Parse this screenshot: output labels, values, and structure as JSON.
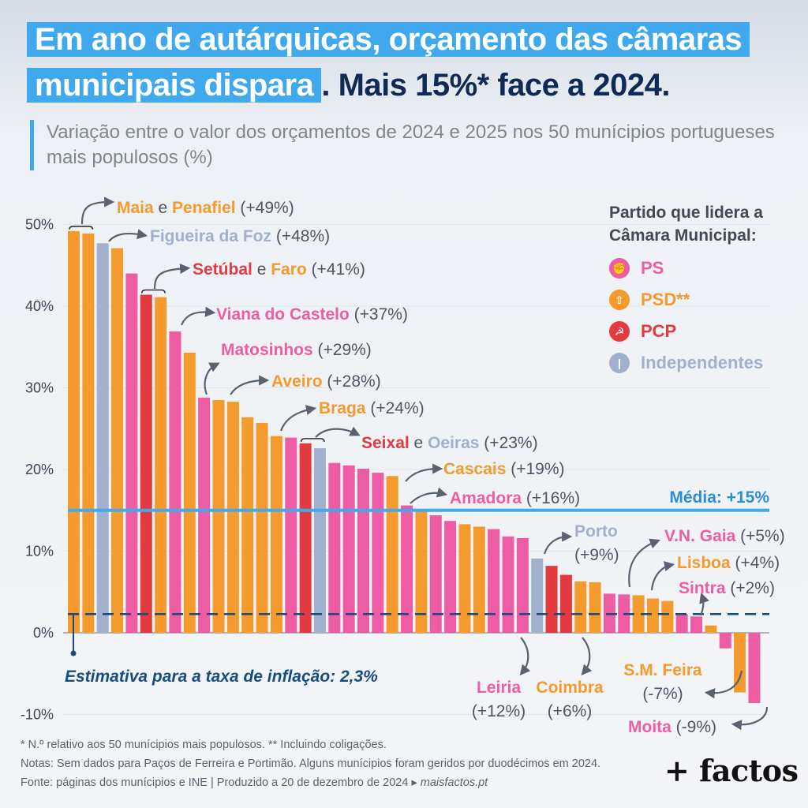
{
  "title": {
    "line1": "Em ano de autárquicas, orçamento das câmaras",
    "line2_highlight": "municipais dispara",
    "line2_rest": ". Mais 15%* face a 2024."
  },
  "subtitle": "Variação entre o valor dos orçamentos de 2024 e 2025 nos 50 munícipios portugueses mais populosos (%)",
  "legend": {
    "title_line1": "Partido que lidera a",
    "title_line2": "Câmara Municipal:",
    "items": [
      {
        "key": "PS",
        "label": "PS",
        "color": "#ee5da4",
        "icon": "fist-rose-icon"
      },
      {
        "key": "PSD",
        "label": "PSD**",
        "color": "#f59a2c",
        "icon": "psd-arrow-icon"
      },
      {
        "key": "PCP",
        "label": "PCP",
        "color": "#e33a40",
        "icon": "hammer-sickle-icon"
      },
      {
        "key": "IND",
        "label": "Independentes",
        "color": "#a1b1cd",
        "icon": "independent-icon"
      }
    ]
  },
  "chart_data": {
    "type": "bar",
    "yticks": [
      50,
      40,
      30,
      20,
      10,
      0,
      -10
    ],
    "ytick_labels": [
      "50%",
      "40%",
      "30%",
      "20%",
      "10%",
      "0%",
      "-10%"
    ],
    "ylim": [
      -10,
      52
    ],
    "party_colors": {
      "PS": "#ee5da4",
      "PSD": "#f59a2c",
      "PCP": "#e33a40",
      "IND": "#a1b1cd"
    },
    "values": [
      49.2,
      48.9,
      47.7,
      47.1,
      44.0,
      41.4,
      41.1,
      36.9,
      34.3,
      28.8,
      28.5,
      28.3,
      26.4,
      25.7,
      24.1,
      23.9,
      23.2,
      22.6,
      20.8,
      20.5,
      20.1,
      19.6,
      19.2,
      15.6,
      14.9,
      14.4,
      13.7,
      13.3,
      13.0,
      12.7,
      11.8,
      11.6,
      9.1,
      8.2,
      7.1,
      6.3,
      6.2,
      4.8,
      4.7,
      4.6,
      4.2,
      3.9,
      2.3,
      2.0,
      0.9,
      -1.9,
      -7.3,
      -8.6
    ],
    "parties": [
      "PSD",
      "PSD",
      "IND",
      "PSD",
      "PS",
      "PCP",
      "PSD",
      "PS",
      "PSD",
      "PS",
      "PSD",
      "PSD",
      "PSD",
      "PSD",
      "PSD",
      "PS",
      "PCP",
      "IND",
      "PS",
      "PS",
      "PS",
      "PS",
      "PSD",
      "PS",
      "PSD",
      "PS",
      "PS",
      "PSD",
      "PSD",
      "PS",
      "PS",
      "PS",
      "IND",
      "PCP",
      "PCP",
      "PSD",
      "PSD",
      "PS",
      "PS",
      "PSD",
      "PSD",
      "PSD",
      "PS",
      "PS",
      "PSD",
      "PS",
      "PSD",
      "PS"
    ],
    "average": {
      "value": 15,
      "label": "Média: +15%"
    },
    "inflation": {
      "value": 2.3,
      "label": "Estimativa para a taxa de inflação: 2,3%"
    },
    "annotations": [
      {
        "names": [
          {
            "t": "Maia",
            "p": "PSD"
          },
          {
            "t": "Penafiel",
            "p": "PSD"
          }
        ],
        "pct": "(+49%)"
      },
      {
        "names": [
          {
            "t": "Figueira da Foz",
            "p": "IND"
          }
        ],
        "pct": "(+48%)"
      },
      {
        "names": [
          {
            "t": "Setúbal",
            "p": "PCP"
          },
          {
            "t": "Faro",
            "p": "PSD"
          }
        ],
        "pct": "(+41%)"
      },
      {
        "names": [
          {
            "t": "Viana do Castelo",
            "p": "PS"
          }
        ],
        "pct": "(+37%)"
      },
      {
        "names": [
          {
            "t": "Matosinhos",
            "p": "PS"
          }
        ],
        "pct": "(+29%)"
      },
      {
        "names": [
          {
            "t": "Aveiro",
            "p": "PSD"
          }
        ],
        "pct": "(+28%)"
      },
      {
        "names": [
          {
            "t": "Braga",
            "p": "PSD"
          }
        ],
        "pct": "(+24%)"
      },
      {
        "names": [
          {
            "t": "Seixal",
            "p": "PCP"
          },
          {
            "t": "Oeiras",
            "p": "IND"
          }
        ],
        "pct": "(+23%)"
      },
      {
        "names": [
          {
            "t": "Cascais",
            "p": "PSD"
          }
        ],
        "pct": "(+19%)"
      },
      {
        "names": [
          {
            "t": "Amadora",
            "p": "PS"
          }
        ],
        "pct": "(+16%)"
      },
      {
        "names": [
          {
            "t": "Porto",
            "p": "IND"
          }
        ],
        "pct": "(+9%)"
      },
      {
        "names": [
          {
            "t": "V.N. Gaia",
            "p": "PS"
          }
        ],
        "pct": "(+5%)"
      },
      {
        "names": [
          {
            "t": "Lisboa",
            "p": "PSD"
          }
        ],
        "pct": "(+4%)"
      },
      {
        "names": [
          {
            "t": "Sintra",
            "p": "PS"
          }
        ],
        "pct": "(+2%)"
      },
      {
        "names": [
          {
            "t": "Leiria",
            "p": "PS"
          }
        ],
        "pct": "(+12%)"
      },
      {
        "names": [
          {
            "t": "Coimbra",
            "p": "PSD"
          }
        ],
        "pct": "(+6%)"
      },
      {
        "names": [
          {
            "t": "S.M. Feira",
            "p": "PSD"
          }
        ],
        "pct": "(-7%)"
      },
      {
        "names": [
          {
            "t": "Moita",
            "p": "PS"
          }
        ],
        "pct": "(-9%)"
      }
    ],
    "and_word": "e"
  },
  "footnotes": {
    "line1": "* N.º relativo aos 50 munícipios mais populosos. ** Incluindo coligações.",
    "line2": "Notas: Sem dados para Paços de Ferreira e Portimão. Alguns munícipios foram geridos por duodécimos em 2024.",
    "line3": "Fonte: páginas dos munícipios e INE | Produzido a 20 de dezembro de 2024 ▸ ",
    "line3_brand": "maisfactos.pt"
  },
  "logo": "+ factos"
}
